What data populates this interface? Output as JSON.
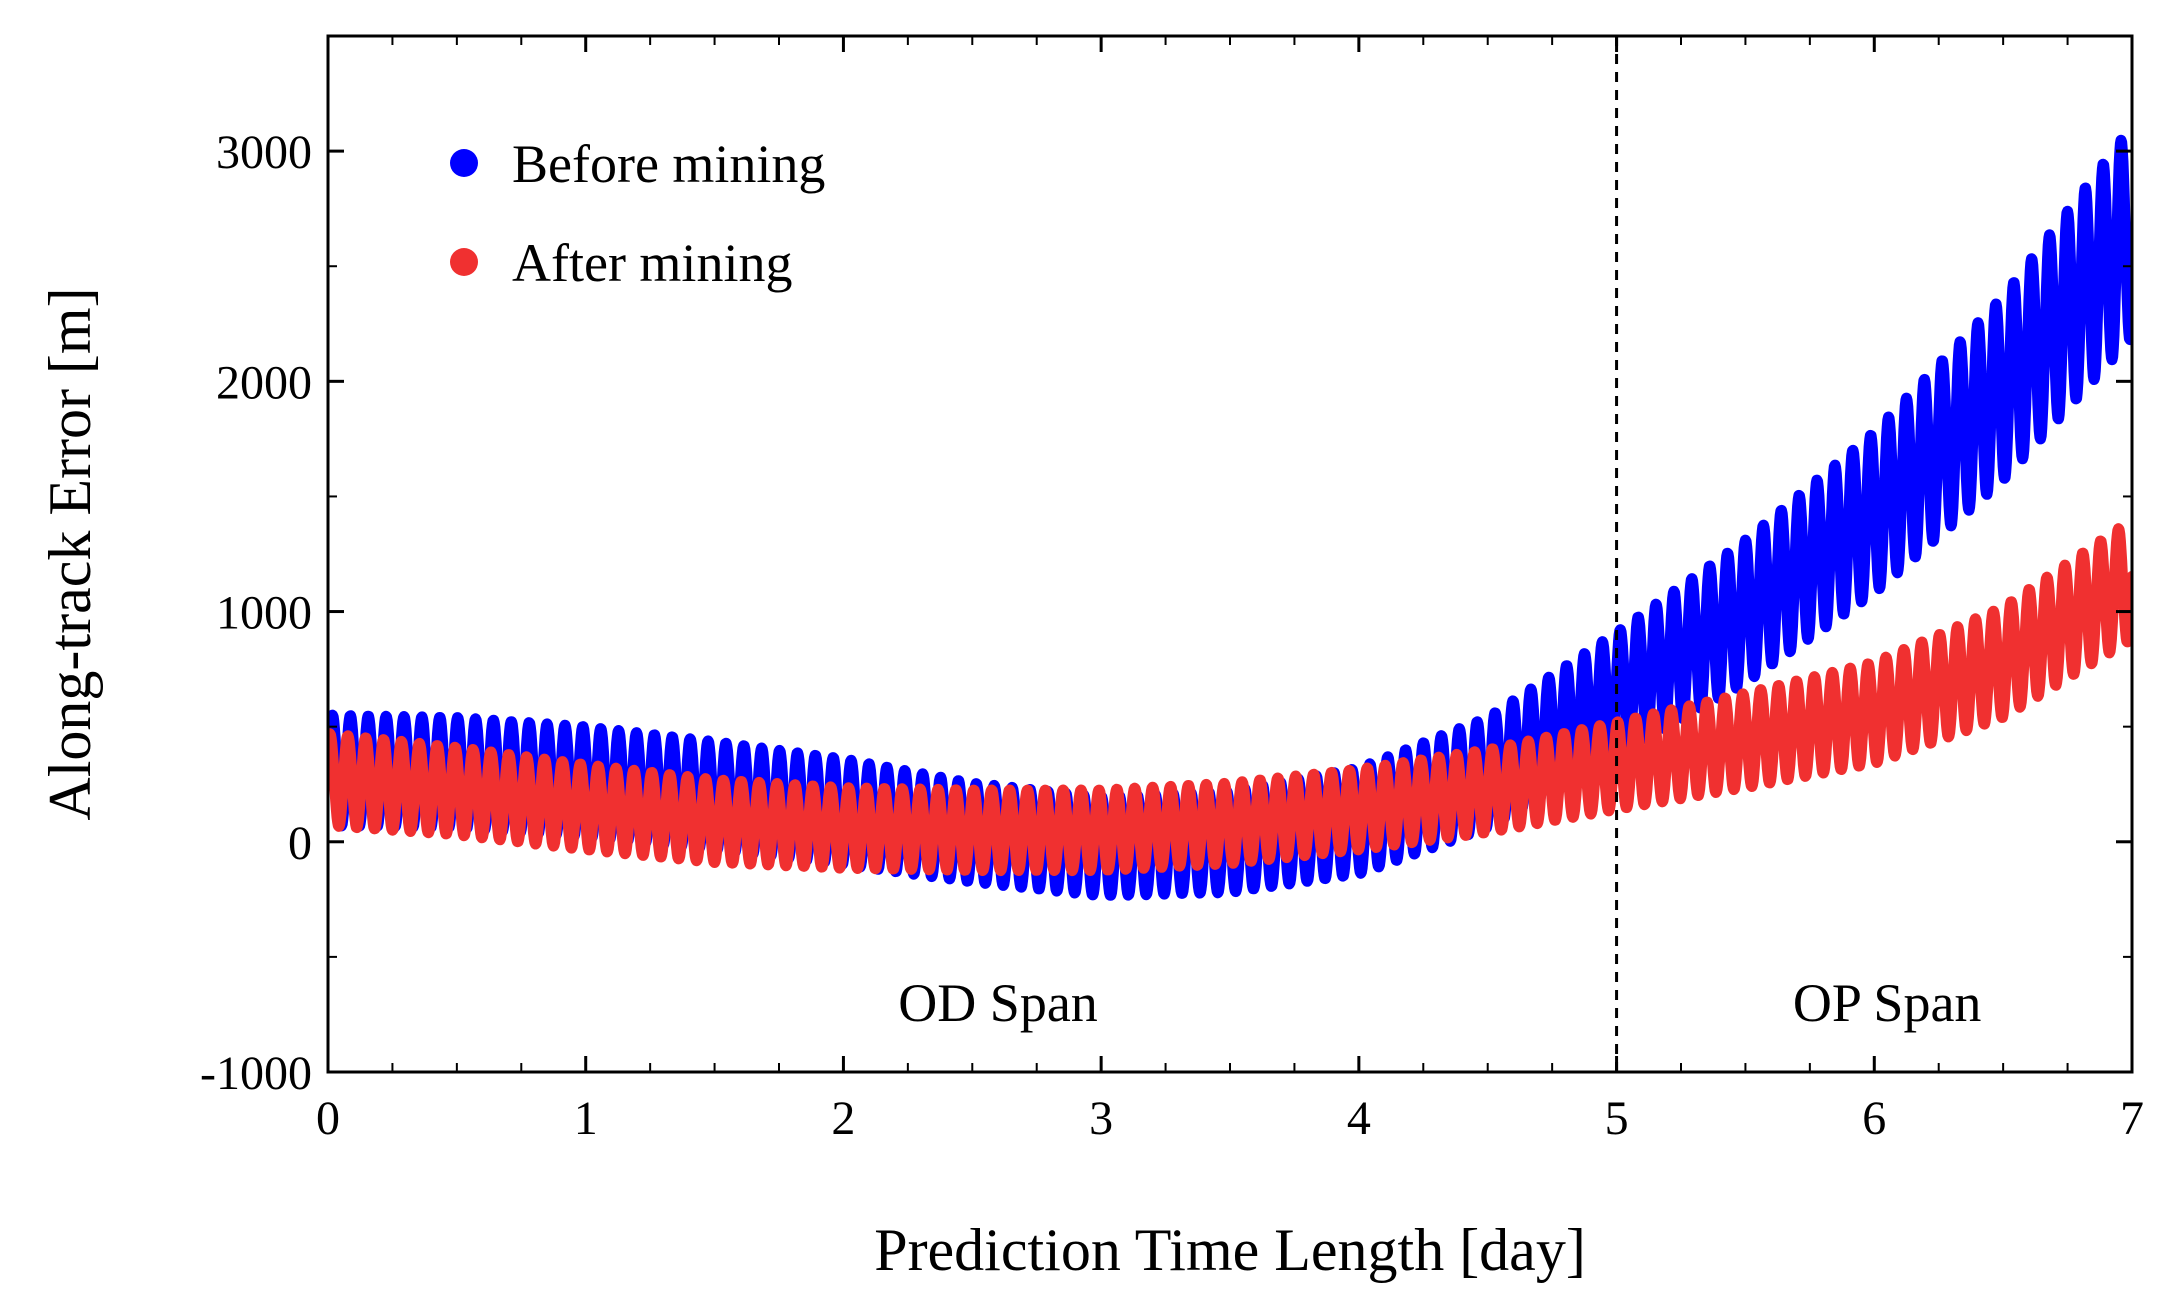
{
  "chart_data": {
    "type": "scatter",
    "title": "",
    "xlabel": "Prediction Time Length [day]",
    "ylabel": "Along-track Error [m]",
    "xlim": [
      0,
      7
    ],
    "ylim": [
      -1000,
      3500
    ],
    "xticks": [
      0,
      1,
      2,
      3,
      4,
      5,
      6,
      7
    ],
    "yticks": [
      -1000,
      0,
      1000,
      2000,
      3000
    ],
    "xtick_labels": [
      "0",
      "1",
      "2",
      "3",
      "4",
      "5",
      "6",
      "7"
    ],
    "ytick_labels": [
      "-1000",
      "0",
      "1000",
      "2000",
      "3000"
    ],
    "oscillation_period_day": 0.0694,
    "series": [
      {
        "name": "Before mining",
        "color": "#0000ff",
        "envelope_day": [
          0,
          0.5,
          1,
          1.5,
          2,
          2.5,
          3,
          3.5,
          4,
          4.5,
          5,
          5.5,
          6,
          6.5,
          7
        ],
        "envelope_center_m": [
          310,
          300,
          260,
          200,
          130,
          40,
          -20,
          0,
          90,
          300,
          640,
          1000,
          1430,
          1970,
          2650
        ],
        "envelope_halfwidth_m": [
          240,
          240,
          240,
          235,
          230,
          215,
          215,
          220,
          230,
          240,
          270,
          310,
          350,
          400,
          460
        ]
      },
      {
        "name": "After mining",
        "color": "#f03030",
        "envelope_day": [
          0,
          0.5,
          1,
          1.5,
          2,
          2.5,
          3,
          3.5,
          4,
          4.5,
          5,
          5.5,
          6,
          6.5,
          7
        ],
        "envelope_center_m": [
          270,
          220,
          150,
          90,
          60,
          50,
          50,
          80,
          140,
          220,
          330,
          440,
          560,
          780,
          1140
        ],
        "envelope_halfwidth_m": [
          200,
          190,
          185,
          180,
          175,
          175,
          175,
          175,
          175,
          180,
          190,
          205,
          220,
          240,
          260
        ]
      }
    ],
    "annotations": [
      {
        "text": "OD Span",
        "x": 2.6,
        "y": -700
      },
      {
        "text": "OP Span",
        "x": 6.05,
        "y": -700
      }
    ],
    "vline": {
      "x": 5,
      "style": "dashed"
    },
    "legend_position": "top-left"
  }
}
